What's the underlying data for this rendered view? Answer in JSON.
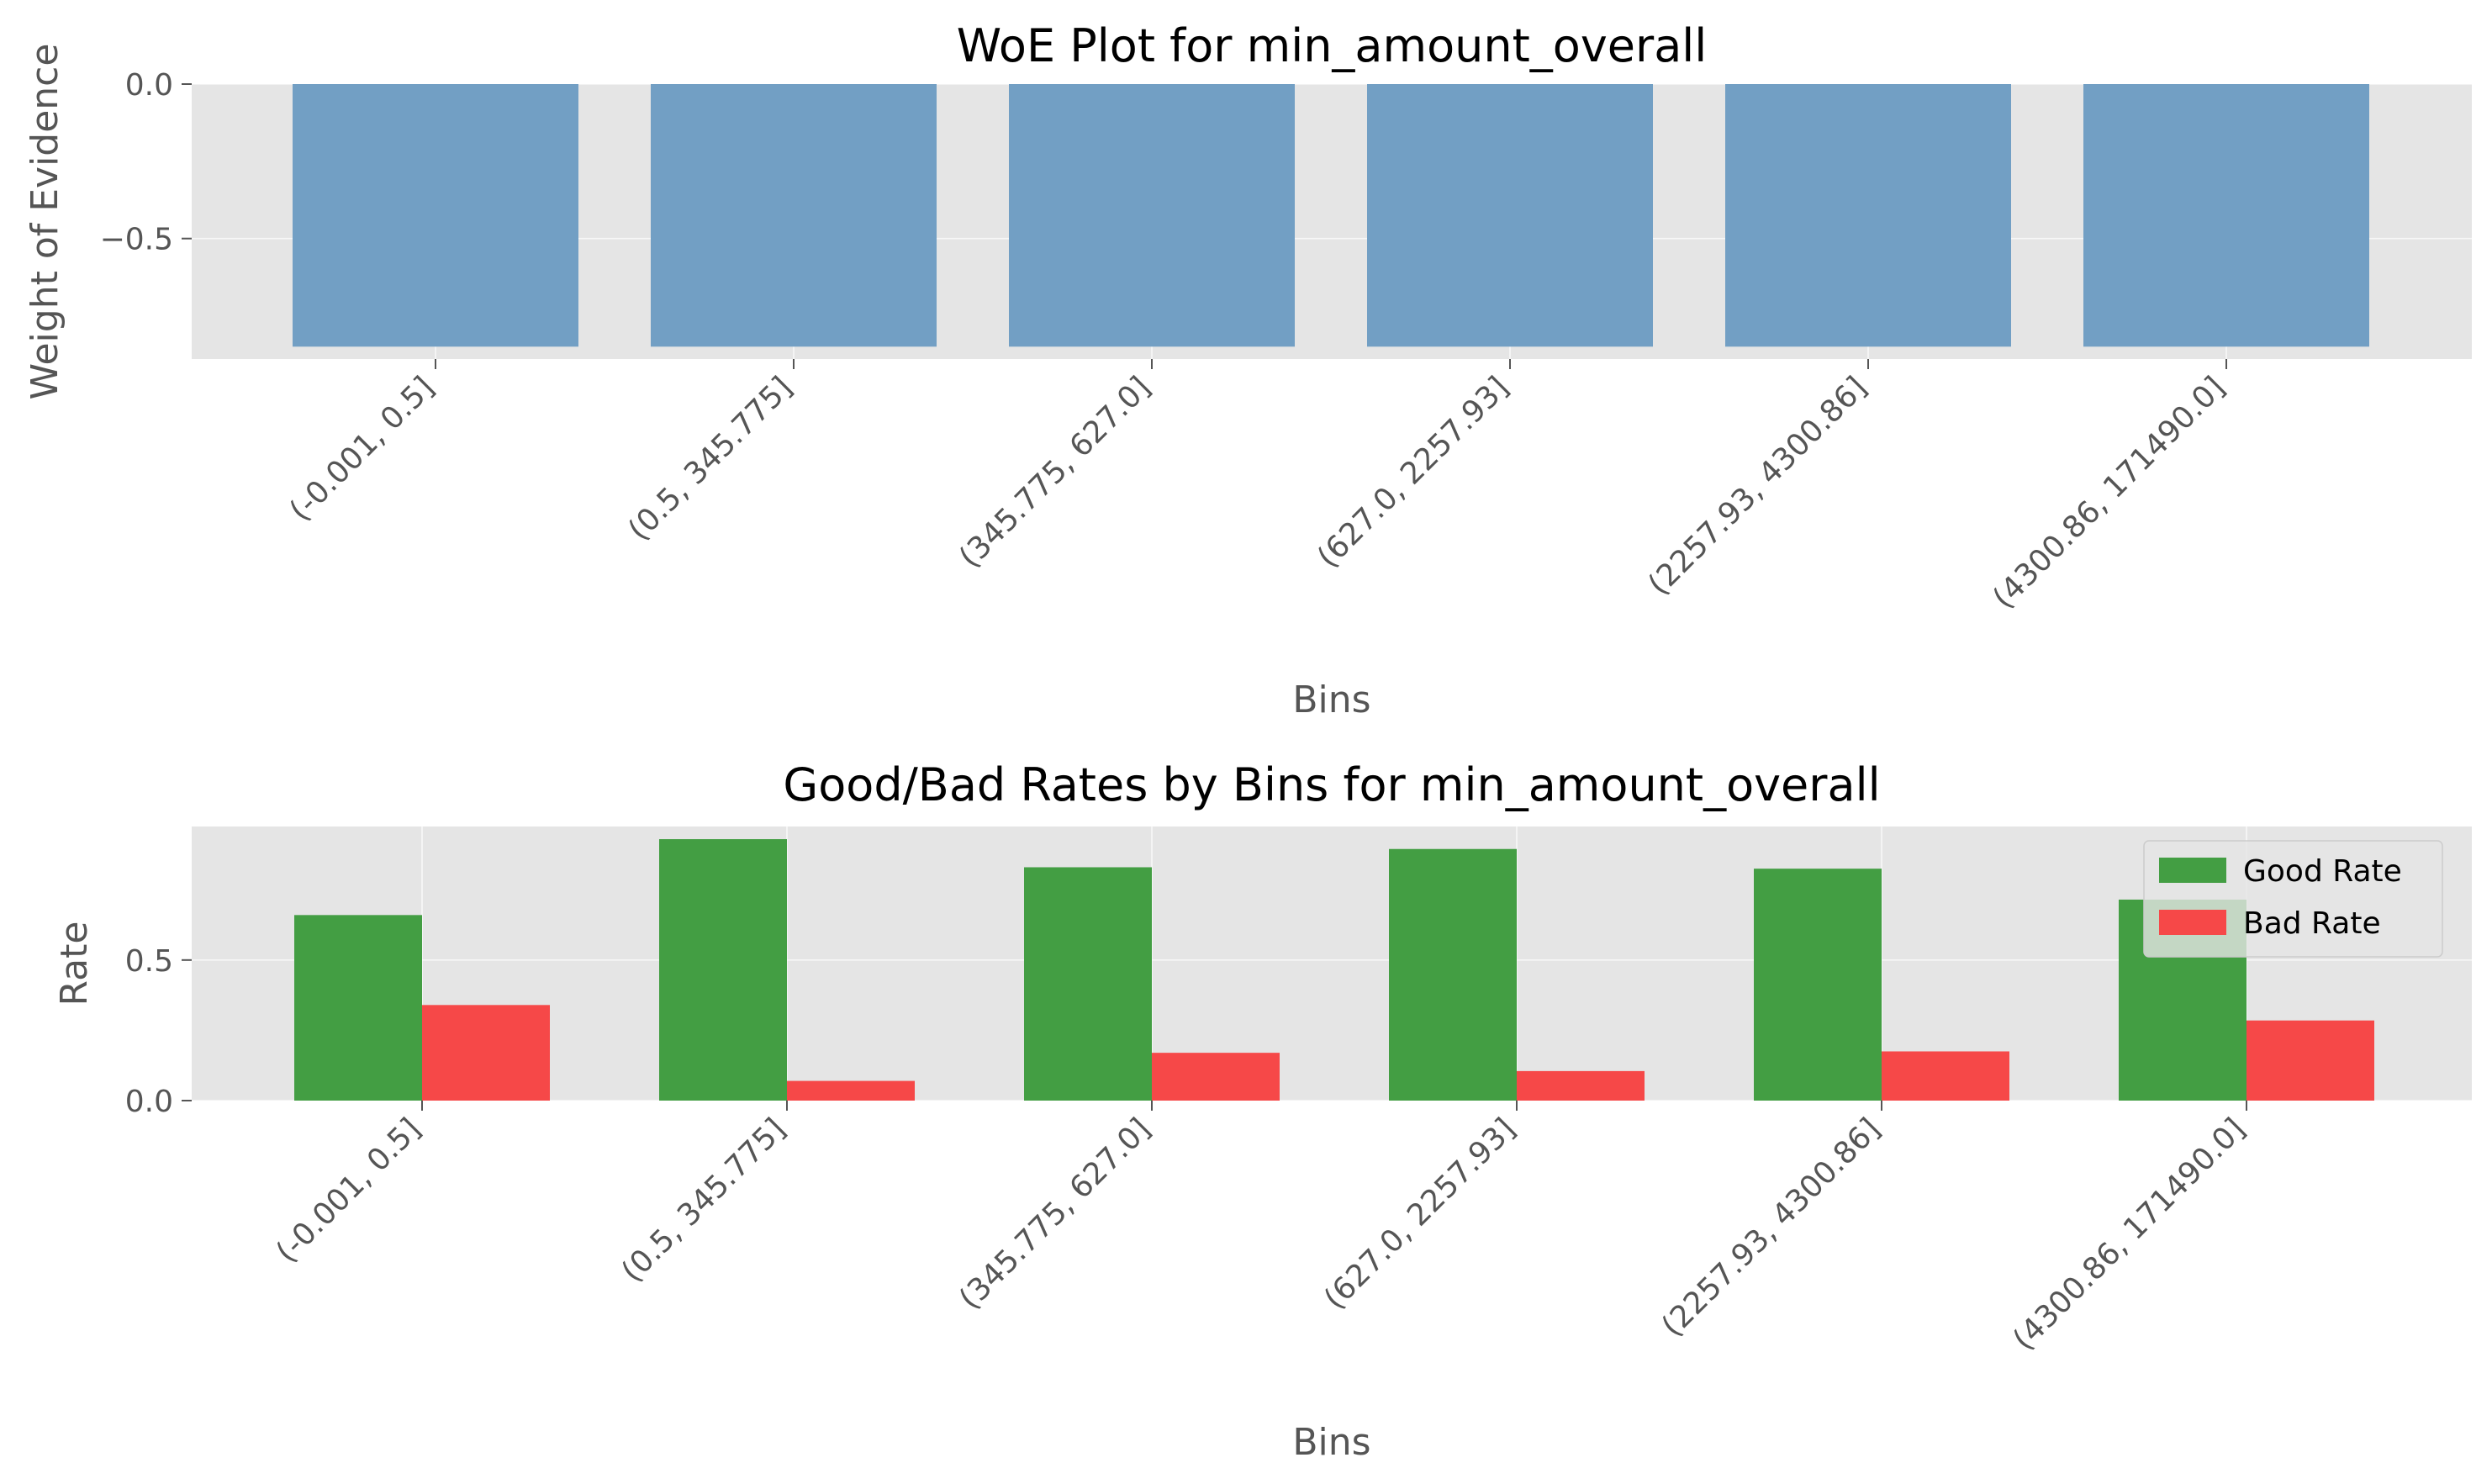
{
  "colors": {
    "axes_background": "#E5E5E5",
    "grid": "#FFFFFF",
    "woe_bar": "#729FC4",
    "good_rate": "#439E43",
    "bad_rate": "#F64848",
    "text": "#555555",
    "title": "#000000"
  },
  "chart_data": [
    {
      "type": "bar",
      "title": "WoE Plot for min_amount_overall",
      "xlabel": "Bins",
      "ylabel": "Weight of Evidence",
      "categories": [
        "(-0.001, 0.5]",
        "(0.5, 345.775]",
        "(345.775, 627.0]",
        "(627.0, 2257.93]",
        "(2257.93, 4300.86]",
        "(4300.86, 171490.0]"
      ],
      "values": [
        -0.85,
        -0.85,
        -0.85,
        -0.85,
        -0.85,
        -0.85
      ],
      "ylim": [
        -0.89,
        0.0
      ],
      "yticks": [
        0.0,
        -0.5
      ],
      "ytick_labels": [
        "0.0",
        "−0.5"
      ],
      "grid": true
    },
    {
      "type": "bar",
      "title": "Good/Bad Rates by Bins for min_amount_overall",
      "xlabel": "Bins",
      "ylabel": "Rate",
      "categories": [
        "(-0.001, 0.5]",
        "(0.5, 345.775]",
        "(345.775, 627.0]",
        "(627.0, 2257.93]",
        "(2257.93, 4300.86]",
        "(4300.86, 171490.0]"
      ],
      "series": [
        {
          "name": "Good Rate",
          "values": [
            0.66,
            0.93,
            0.83,
            0.895,
            0.825,
            0.715
          ]
        },
        {
          "name": "Bad Rate",
          "values": [
            0.34,
            0.07,
            0.17,
            0.105,
            0.175,
            0.285
          ]
        }
      ],
      "ylim": [
        0,
        0.975
      ],
      "yticks": [
        0.0,
        0.5
      ],
      "ytick_labels": [
        "0.0",
        "0.5"
      ],
      "grid": true,
      "legend_position": "top-right"
    }
  ]
}
